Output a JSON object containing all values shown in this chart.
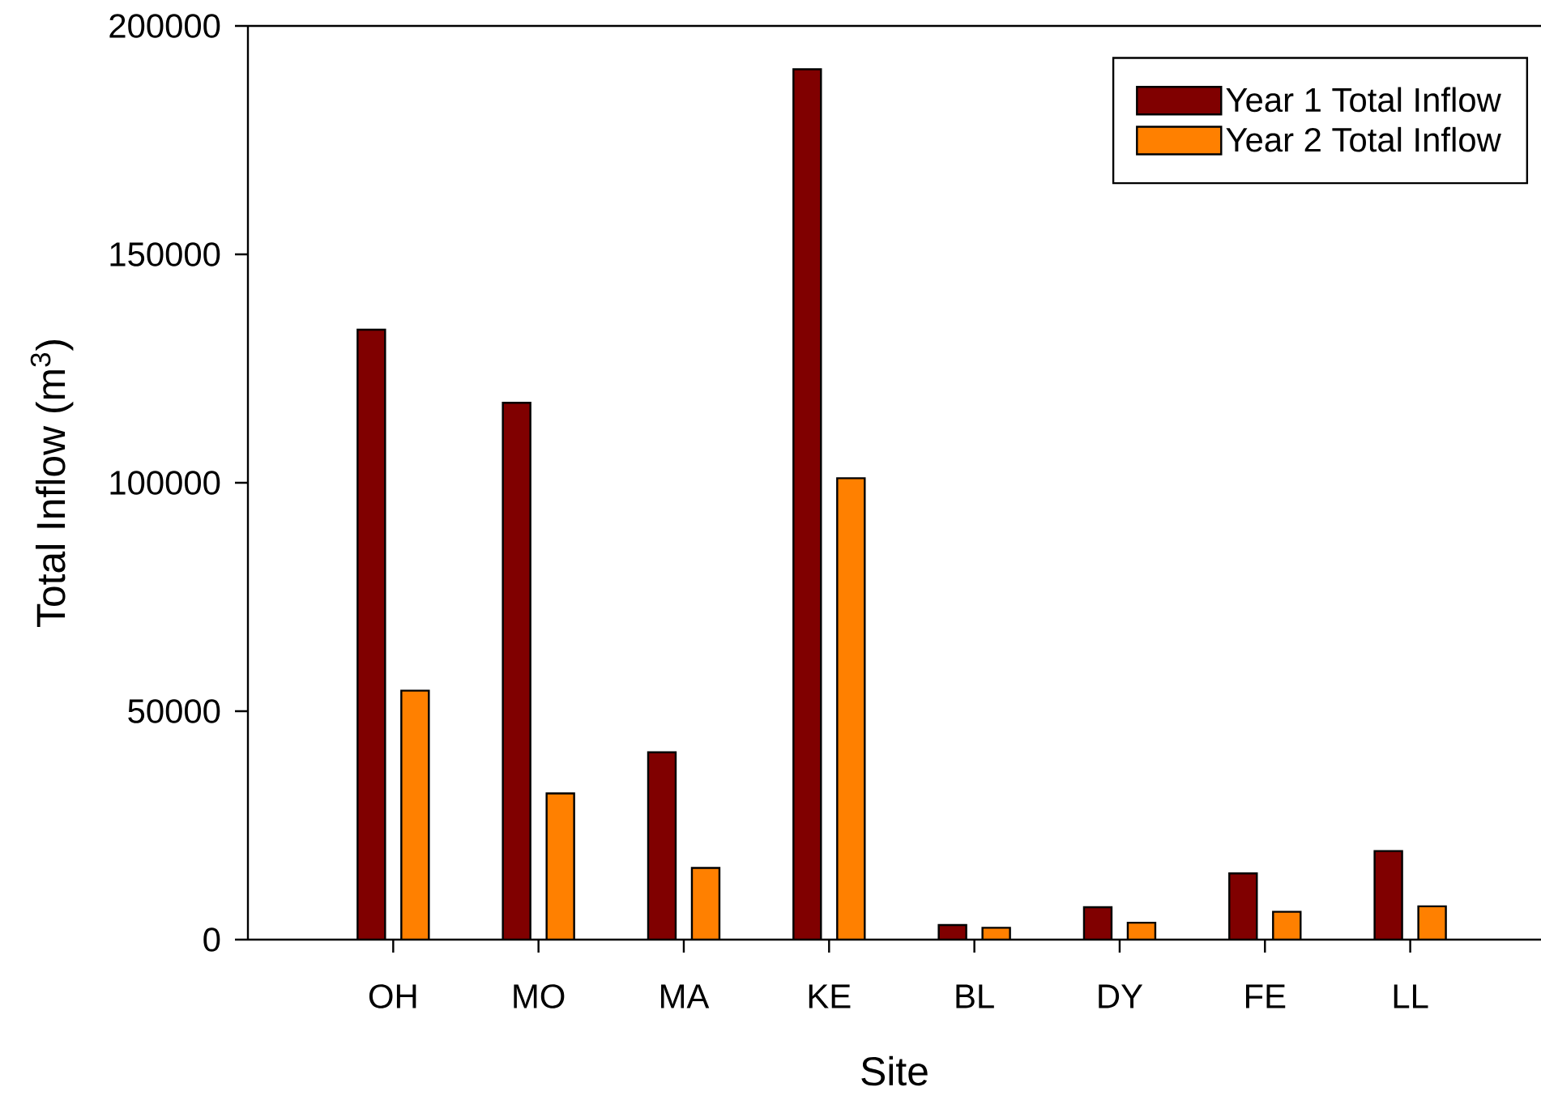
{
  "chart_data": {
    "type": "bar",
    "xlabel": "Site",
    "ylabel": "Total Inflow (m$^{3}$)",
    "categories": [
      "OH",
      "MO",
      "MA",
      "KE",
      "BL",
      "DY",
      "FE",
      "LL"
    ],
    "series": [
      {
        "name": "Year 1 Total Inflow",
        "color": "#800000",
        "values": [
          133500,
          117500,
          41000,
          190500,
          3200,
          7100,
          14500,
          19400
        ]
      },
      {
        "name": "Year 2 Total Inflow",
        "color": "#ff8000",
        "values": [
          54500,
          32000,
          15700,
          101000,
          2600,
          3700,
          6100,
          7300
        ]
      }
    ],
    "ylim": [
      0,
      200000
    ],
    "yticks": [
      0,
      50000,
      100000,
      150000,
      200000
    ],
    "legend": "top right"
  }
}
